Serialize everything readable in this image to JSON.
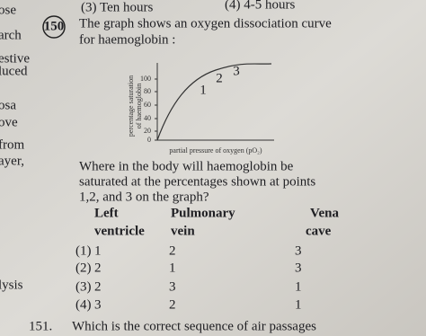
{
  "margin_fragments": [
    "ose",
    "arch",
    "estive",
    "luced",
    "osa",
    "ove",
    "from",
    "ayer,",
    "lysis"
  ],
  "previous_options": [
    "(3) Ten hours",
    "(4) 4-5 hours"
  ],
  "question_150": {
    "number": "150",
    "text_lines": [
      "The graph shows an oxygen dissociation curve",
      "for haemoglobin :"
    ],
    "figure": {
      "y_axis_label_lines": [
        "percentage saturation",
        "of haemoglobin"
      ],
      "y_ticks": [
        "100",
        "80",
        "60",
        "40",
        "20",
        "0"
      ],
      "x_axis_label": "partial pressure of oxygen (pO₂)",
      "point_labels": [
        "1",
        "2",
        "3"
      ]
    },
    "prompt_lines": [
      "Where in the body will haemoglobin be",
      "saturated at the percentages shown at points",
      "1,2, and 3 on the graph?"
    ],
    "table": {
      "header_top": [
        "Left",
        "Pulmonary",
        "Vena"
      ],
      "header_bottom": [
        "ventricle",
        "vein",
        "cave"
      ],
      "rows": [
        [
          "(1)",
          "1",
          "2",
          "3"
        ],
        [
          "(2)",
          "2",
          "1",
          "3"
        ],
        [
          "(3)",
          "2",
          "3",
          "1"
        ],
        [
          "(4)",
          "3",
          "2",
          "1"
        ]
      ]
    }
  },
  "question_151": {
    "number": "151.",
    "text": "Which is the correct sequence of air passages"
  }
}
